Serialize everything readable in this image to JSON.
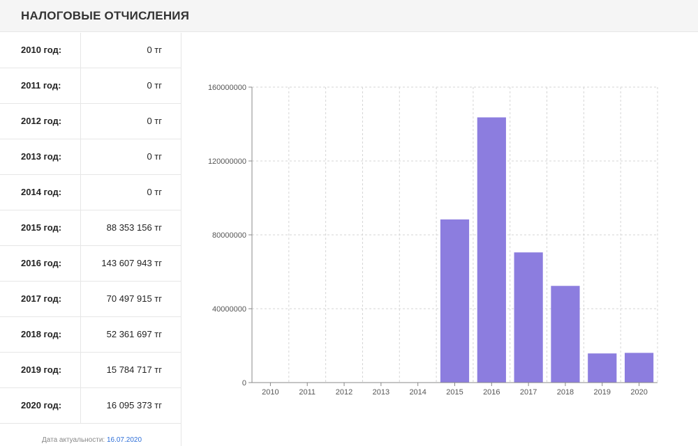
{
  "header": {
    "title": "НАЛОГОВЫЕ ОТЧИСЛЕНИЯ"
  },
  "table": {
    "rows": [
      {
        "year": "2010 год:",
        "value": "0 тг"
      },
      {
        "year": "2011 год:",
        "value": "0 тг"
      },
      {
        "year": "2012 год:",
        "value": "0 тг"
      },
      {
        "year": "2013 год:",
        "value": "0 тг"
      },
      {
        "year": "2014 год:",
        "value": "0 тг"
      },
      {
        "year": "2015 год:",
        "value": "88 353 156 тг"
      },
      {
        "year": "2016 год:",
        "value": "143 607 943 тг"
      },
      {
        "year": "2017 год:",
        "value": "70 497 915 тг"
      },
      {
        "year": "2018 год:",
        "value": "52 361 697 тг"
      },
      {
        "year": "2019 год:",
        "value": "15 784 717 тг"
      },
      {
        "year": "2020 год:",
        "value": "16 095 373 тг"
      }
    ]
  },
  "footer": {
    "label": "Дата актуальности:",
    "date": "16.07.2020"
  },
  "colors": {
    "bar": "#8c7ddf",
    "grid": "#d5d5d5",
    "axis": "#888888"
  },
  "chart_data": {
    "type": "bar",
    "categories": [
      "2010",
      "2011",
      "2012",
      "2013",
      "2014",
      "2015",
      "2016",
      "2017",
      "2018",
      "2019",
      "2020"
    ],
    "values": [
      0,
      0,
      0,
      0,
      0,
      88353156,
      143607943,
      70497915,
      52361697,
      15784717,
      16095373
    ],
    "ylim": [
      0,
      160000000
    ],
    "yticks": [
      0,
      40000000,
      80000000,
      120000000,
      160000000
    ],
    "ytick_labels": [
      "0",
      "40000000",
      "80000000",
      "120000000",
      "160000000"
    ],
    "grid": true
  }
}
